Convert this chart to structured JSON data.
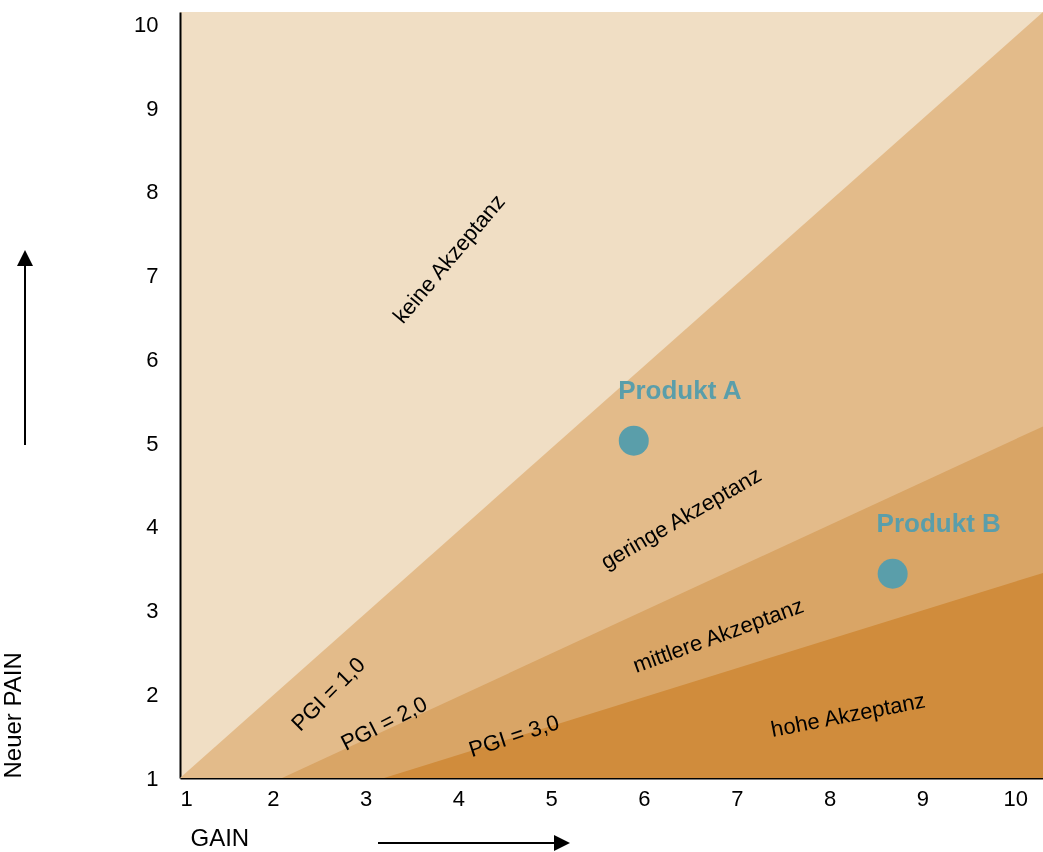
{
  "chart_data": {
    "type": "scatter",
    "xlabel": "GAIN",
    "ylabel": "Neuer PAIN",
    "xlim": [
      1,
      10.3
    ],
    "ylim": [
      1,
      10.15
    ],
    "xticks": [
      1,
      2,
      3,
      4,
      5,
      6,
      7,
      8,
      9,
      10
    ],
    "yticks": [
      1,
      2,
      3,
      4,
      5,
      6,
      7,
      8,
      9,
      10
    ],
    "grid": false,
    "series": [
      {
        "type": "area",
        "color": "#e3bb8a",
        "x": [
          1,
          10.3
        ],
        "values": [
          1,
          10.15
        ]
      },
      {
        "type": "area",
        "color": "#d9a566",
        "x": [
          2.1,
          10.3
        ],
        "values": [
          1,
          5.2
        ]
      },
      {
        "type": "area",
        "color": "#d08c3c",
        "x": [
          3.2,
          10.3
        ],
        "values": [
          1,
          3.45
        ]
      },
      {
        "name": "Produkt A",
        "color": "#5a9eaa",
        "marker": "circle",
        "x": [
          5.89
        ],
        "values": [
          5.03
        ]
      },
      {
        "name": "Produkt B",
        "color": "#5a9eaa",
        "marker": "circle",
        "x": [
          8.68
        ],
        "values": [
          3.44
        ]
      }
    ],
    "annotations": [
      "keine Akzeptanz",
      "geringe Akzeptanz",
      "mittlere Akzeptanz",
      "hohe Akzeptanz",
      "PGI = 1,0",
      "PGI = 2,0",
      "PGI = 3,0"
    ]
  }
}
